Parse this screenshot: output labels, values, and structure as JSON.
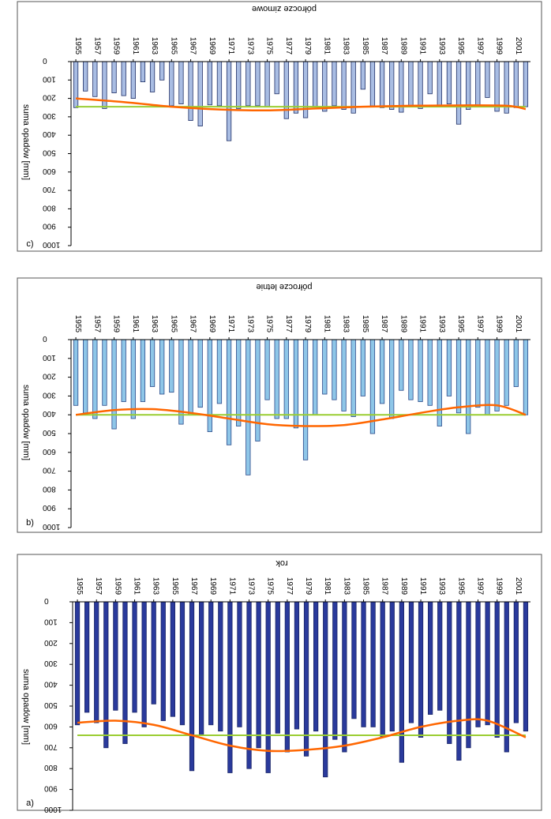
{
  "chart_data": [
    {
      "type": "bar",
      "panel_label": "c)",
      "title": "półrocze zimowe",
      "ylabel": "suma opadów [mm]",
      "xlabel": "",
      "ylim": [
        0,
        1000
      ],
      "y_ticks": [
        "0",
        "100",
        "200",
        "300",
        "400",
        "500",
        "600",
        "700",
        "800",
        "900",
        "1000"
      ],
      "x_tick_labels": [
        "1955",
        "1957",
        "1959",
        "1961",
        "1963",
        "1965",
        "1967",
        "1969",
        "1971",
        "1973",
        "1975",
        "1977",
        "1979",
        "1981",
        "1983",
        "1985",
        "1987",
        "1989",
        "1991",
        "1993",
        "1995",
        "1997",
        "1999",
        "2001"
      ],
      "categories": [
        1955,
        1956,
        1957,
        1958,
        1959,
        1960,
        1961,
        1962,
        1963,
        1964,
        1965,
        1966,
        1967,
        1968,
        1969,
        1970,
        1971,
        1972,
        1973,
        1974,
        1975,
        1976,
        1977,
        1978,
        1979,
        1980,
        1981,
        1982,
        1983,
        1984,
        1985,
        1986,
        1987,
        1988,
        1989,
        1990,
        1991,
        1992,
        1993,
        1994,
        1995,
        1996,
        1997,
        1998,
        1999,
        2000,
        2001,
        2002
      ],
      "values": [
        250,
        160,
        190,
        255,
        170,
        185,
        200,
        110,
        165,
        100,
        240,
        230,
        320,
        350,
        235,
        240,
        430,
        255,
        240,
        240,
        245,
        175,
        310,
        280,
        305,
        245,
        270,
        240,
        260,
        280,
        150,
        240,
        250,
        260,
        275,
        240,
        255,
        175,
        245,
        230,
        340,
        260,
        240,
        195,
        270,
        280,
        250,
        245
      ],
      "trend_mean": 245,
      "trend_smooth": [
        [
          1955,
          200
        ],
        [
          1960,
          220
        ],
        [
          1965,
          245
        ],
        [
          1970,
          260
        ],
        [
          1975,
          265
        ],
        [
          1980,
          255
        ],
        [
          1985,
          245
        ],
        [
          1990,
          240
        ],
        [
          1995,
          238
        ],
        [
          2000,
          240
        ],
        [
          2002,
          258
        ]
      ],
      "bar_color": "#a9bde3",
      "bar_stroke": "#1f2f66",
      "mean_color": "#9acd32",
      "smooth_color": "#ff6600"
    },
    {
      "type": "bar",
      "panel_label": "b)",
      "title": "półrocze letnie",
      "ylabel": "suma opadów [mm]",
      "xlabel": "",
      "ylim": [
        0,
        1000
      ],
      "y_ticks": [
        "0",
        "100",
        "200",
        "300",
        "400",
        "500",
        "600",
        "700",
        "800",
        "900",
        "1000"
      ],
      "x_tick_labels": [
        "1955",
        "1957",
        "1959",
        "1961",
        "1963",
        "1965",
        "1967",
        "1969",
        "1971",
        "1973",
        "1975",
        "1977",
        "1979",
        "1981",
        "1983",
        "1985",
        "1987",
        "1989",
        "1991",
        "1993",
        "1995",
        "1997",
        "1999",
        "2001"
      ],
      "categories": [
        1955,
        1956,
        1957,
        1958,
        1959,
        1960,
        1961,
        1962,
        1963,
        1964,
        1965,
        1966,
        1967,
        1968,
        1969,
        1970,
        1971,
        1972,
        1973,
        1974,
        1975,
        1976,
        1977,
        1978,
        1979,
        1980,
        1981,
        1982,
        1983,
        1984,
        1985,
        1986,
        1987,
        1988,
        1989,
        1990,
        1991,
        1992,
        1993,
        1994,
        1995,
        1996,
        1997,
        1998,
        1999,
        2000,
        2001,
        2002
      ],
      "values": [
        350,
        390,
        420,
        350,
        475,
        330,
        420,
        330,
        250,
        290,
        280,
        450,
        400,
        360,
        490,
        340,
        560,
        460,
        720,
        540,
        320,
        420,
        420,
        470,
        640,
        400,
        290,
        320,
        380,
        410,
        300,
        500,
        340,
        420,
        270,
        320,
        330,
        350,
        460,
        300,
        390,
        500,
        360,
        400,
        380,
        350,
        250,
        400
      ],
      "trend_mean": 400,
      "trend_smooth": [
        [
          1955,
          400
        ],
        [
          1959,
          375
        ],
        [
          1963,
          370
        ],
        [
          1967,
          390
        ],
        [
          1971,
          420
        ],
        [
          1975,
          450
        ],
        [
          1979,
          460
        ],
        [
          1983,
          455
        ],
        [
          1987,
          425
        ],
        [
          1991,
          390
        ],
        [
          1995,
          360
        ],
        [
          1999,
          350
        ],
        [
          2002,
          400
        ]
      ],
      "bar_color": "#8ec6e8",
      "bar_stroke": "#2b4a8a",
      "mean_color": "#9acd32",
      "smooth_color": "#ff6600"
    },
    {
      "type": "bar",
      "panel_label": "a)",
      "title": "rok",
      "ylabel": "suma opadów [mm]",
      "xlabel": "",
      "ylim": [
        0,
        1000
      ],
      "y_ticks": [
        "0",
        "100",
        "200",
        "300",
        "400",
        "500",
        "600",
        "700",
        "800",
        "900",
        "1000"
      ],
      "x_tick_labels": [
        "1955",
        "1957",
        "1959",
        "1961",
        "1963",
        "1965",
        "1967",
        "1969",
        "1971",
        "1973",
        "1975",
        "1977",
        "1979",
        "1981",
        "1983",
        "1985",
        "1987",
        "1989",
        "1991",
        "1993",
        "1995",
        "1997",
        "1999",
        "2001"
      ],
      "categories": [
        1955,
        1956,
        1957,
        1958,
        1959,
        1960,
        1961,
        1962,
        1963,
        1964,
        1965,
        1966,
        1967,
        1968,
        1969,
        1970,
        1971,
        1972,
        1973,
        1974,
        1975,
        1976,
        1977,
        1978,
        1979,
        1980,
        1981,
        1982,
        1983,
        1984,
        1985,
        1986,
        1987,
        1988,
        1989,
        1990,
        1991,
        1992,
        1993,
        1994,
        1995,
        1996,
        1997,
        1998,
        1999,
        2000,
        2001,
        2002
      ],
      "values": [
        590,
        530,
        580,
        700,
        520,
        680,
        530,
        600,
        490,
        570,
        550,
        590,
        810,
        640,
        590,
        620,
        820,
        600,
        800,
        700,
        820,
        630,
        720,
        610,
        740,
        620,
        840,
        660,
        720,
        560,
        600,
        600,
        650,
        620,
        770,
        580,
        650,
        540,
        520,
        680,
        760,
        700,
        600,
        590,
        650,
        720,
        580,
        620
      ],
      "trend_mean": 640,
      "trend_smooth": [
        [
          1955,
          580
        ],
        [
          1959,
          570
        ],
        [
          1963,
          590
        ],
        [
          1967,
          640
        ],
        [
          1971,
          690
        ],
        [
          1975,
          715
        ],
        [
          1979,
          710
        ],
        [
          1983,
          690
        ],
        [
          1987,
          650
        ],
        [
          1991,
          600
        ],
        [
          1995,
          570
        ],
        [
          1998,
          570
        ],
        [
          2002,
          650
        ]
      ],
      "bar_color": "#2a3a9c",
      "bar_stroke": "#1a2566",
      "mean_color": "#9acd32",
      "smooth_color": "#ff6600"
    }
  ]
}
